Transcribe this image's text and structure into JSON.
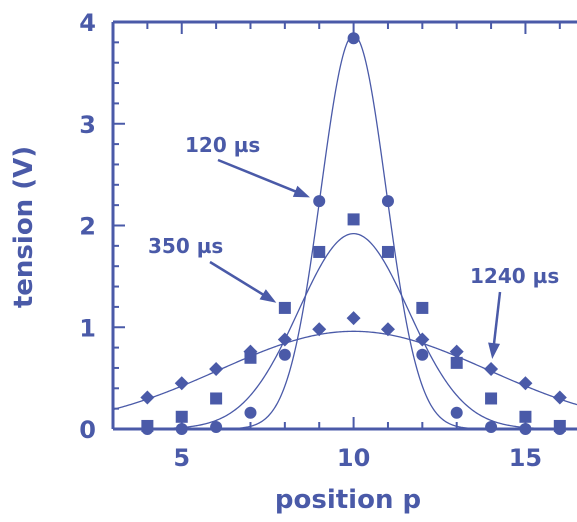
{
  "chart_data": {
    "type": "scatter",
    "xlabel": "position  p",
    "ylabel": "tension  (V)",
    "xlim": [
      3,
      16.5
    ],
    "ylim": [
      0,
      4
    ],
    "x_ticks": [
      "5",
      "10",
      "15"
    ],
    "y_ticks": [
      "0",
      "1",
      "2",
      "3",
      "4"
    ],
    "grid": false,
    "color": "#4a5aa8",
    "series": [
      {
        "marker": "circle",
        "x": [
          4,
          5,
          6,
          7,
          8,
          9,
          10,
          11,
          12,
          13,
          14,
          15,
          16
        ],
        "y": [
          0.0,
          0.0,
          0.02,
          0.16,
          0.73,
          2.24,
          3.84,
          2.24,
          0.73,
          0.16,
          0.02,
          0.0,
          0.0
        ],
        "fit": {
          "amplitude": 3.87,
          "center": 10,
          "sigma": 0.95
        }
      },
      {
        "marker": "square",
        "x": [
          4,
          5,
          6,
          7,
          8,
          9,
          10,
          11,
          12,
          13,
          14,
          15,
          16
        ],
        "y": [
          0.03,
          0.12,
          0.3,
          0.7,
          1.19,
          1.74,
          2.06,
          1.74,
          1.19,
          0.65,
          0.3,
          0.12,
          0.03
        ],
        "fit": {
          "amplitude": 1.92,
          "center": 10,
          "sigma": 1.6
        }
      },
      {
        "marker": "diamond",
        "x": [
          4,
          5,
          6,
          7,
          8,
          9,
          10,
          11,
          12,
          13,
          14,
          15,
          16
        ],
        "y": [
          0.31,
          0.45,
          0.59,
          0.76,
          0.88,
          0.98,
          1.09,
          0.98,
          0.88,
          0.76,
          0.59,
          0.45,
          0.31
        ],
        "fit": {
          "amplitude": 0.96,
          "center": 10,
          "sigma": 3.9
        }
      }
    ],
    "annotations": [
      {
        "text": "120 µs",
        "target": [
          9,
          2.24
        ]
      },
      {
        "text": "350 µs",
        "target": [
          8,
          1.19
        ]
      },
      {
        "text": "1240 µs",
        "target": [
          14,
          0.59
        ]
      }
    ]
  }
}
